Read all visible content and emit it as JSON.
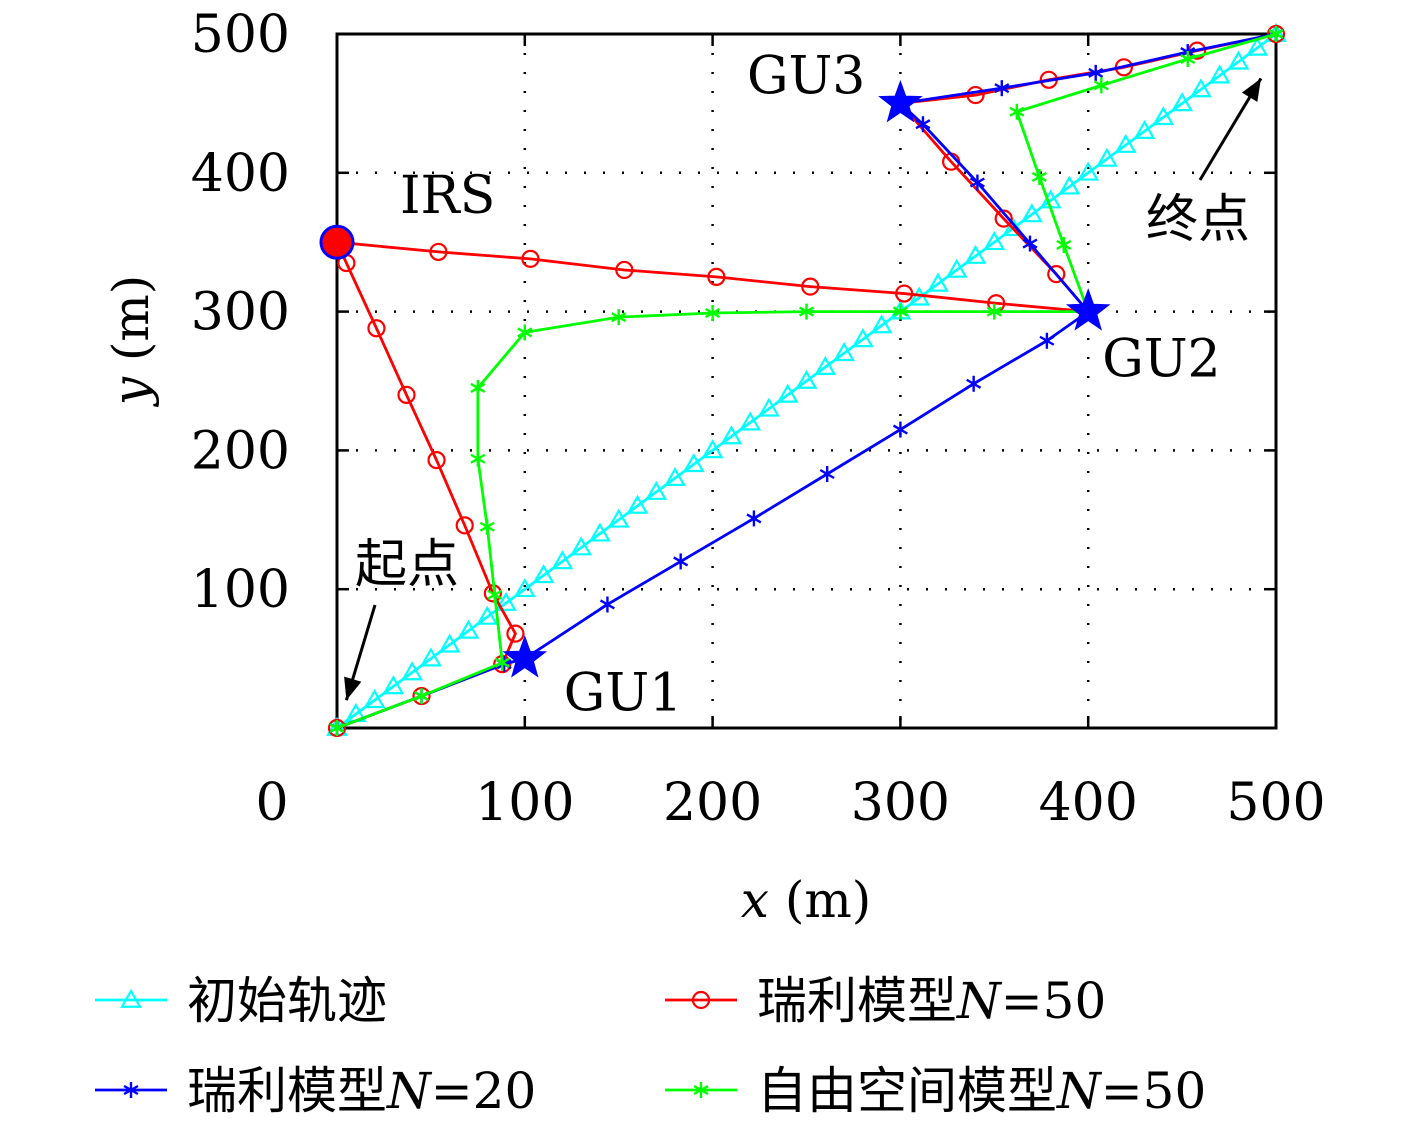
{
  "chart_data": {
    "type": "line",
    "title": "",
    "xlabel_var": "x",
    "xlabel_unit": " (m)",
    "ylabel_var": "y",
    "ylabel_unit": " (m)",
    "xlim": [
      0,
      500
    ],
    "ylim": [
      0,
      500
    ],
    "xticks": [
      0,
      100,
      200,
      300,
      400,
      500
    ],
    "yticks": [
      100,
      200,
      300,
      400,
      500
    ],
    "xtick_labels": [
      "0",
      "100",
      "200",
      "300",
      "400",
      "500"
    ],
    "ytick_labels": [
      "100",
      "200",
      "300",
      "400",
      "500"
    ],
    "grid": true,
    "legend_position": "bottom",
    "series": [
      {
        "name": "初始轨迹",
        "name_plain": "初始轨迹",
        "color": "#00ffff",
        "marker": "triangle",
        "line": [
          [
            0,
            0
          ],
          [
            500,
            500
          ]
        ],
        "marker_count": 50
      },
      {
        "name": "瑞利模型N=50",
        "name_plain": "瑞利模型",
        "name_var": "N",
        "name_value": "=50",
        "color": "#ff0000",
        "marker": "circle",
        "points": [
          [
            0,
            0
          ],
          [
            45,
            23
          ],
          [
            88,
            46
          ],
          [
            95,
            68
          ],
          [
            83,
            97
          ],
          [
            68,
            146
          ],
          [
            53,
            193
          ],
          [
            37,
            240
          ],
          [
            21,
            288
          ],
          [
            5,
            335
          ],
          [
            0,
            350
          ],
          [
            54,
            343
          ],
          [
            103,
            338
          ],
          [
            153,
            330
          ],
          [
            202,
            325
          ],
          [
            252,
            318
          ],
          [
            302,
            313
          ],
          [
            351,
            306
          ],
          [
            400,
            300
          ],
          [
            383,
            327
          ],
          [
            355,
            367
          ],
          [
            327,
            408
          ],
          [
            300,
            450
          ],
          [
            340,
            456
          ],
          [
            379,
            467
          ],
          [
            419,
            476
          ],
          [
            458,
            488
          ],
          [
            500,
            500
          ]
        ]
      },
      {
        "name": "瑞利模型N=20",
        "name_plain": "瑞利模型",
        "name_var": "N",
        "name_value": "=20",
        "color": "#0000ff",
        "marker": "asterisk",
        "points": [
          [
            0,
            0
          ],
          [
            45,
            23
          ],
          [
            89,
            46
          ],
          [
            100,
            50
          ],
          [
            144,
            89
          ],
          [
            183,
            120
          ],
          [
            222,
            151
          ],
          [
            261,
            183
          ],
          [
            300,
            215
          ],
          [
            339,
            248
          ],
          [
            378,
            279
          ],
          [
            400,
            300
          ],
          [
            369,
            349
          ],
          [
            341,
            393
          ],
          [
            312,
            435
          ],
          [
            300,
            450
          ],
          [
            354,
            461
          ],
          [
            404,
            472
          ],
          [
            453,
            487
          ],
          [
            500,
            500
          ]
        ]
      },
      {
        "name": "自由空间模型N=50",
        "name_plain": "自由空间模型",
        "name_var": "N",
        "name_value": "=50",
        "color": "#00ff00",
        "marker": "asterisk",
        "points": [
          [
            0,
            0
          ],
          [
            45,
            23
          ],
          [
            88,
            47
          ],
          [
            84,
            96
          ],
          [
            80,
            145
          ],
          [
            75,
            194
          ],
          [
            75,
            245
          ],
          [
            100,
            285
          ],
          [
            150,
            296
          ],
          [
            200,
            299
          ],
          [
            250,
            300
          ],
          [
            300,
            300
          ],
          [
            350,
            300
          ],
          [
            400,
            300
          ],
          [
            387,
            348
          ],
          [
            374,
            397
          ],
          [
            362,
            444
          ],
          [
            407,
            463
          ],
          [
            453,
            482
          ],
          [
            500,
            500
          ]
        ]
      }
    ],
    "special_points": [
      {
        "label": "IRS",
        "x": 0,
        "y": 350,
        "style": "irs"
      },
      {
        "label": "GU1",
        "x": 100,
        "y": 50,
        "style": "star"
      },
      {
        "label": "GU2",
        "x": 400,
        "y": 300,
        "style": "star"
      },
      {
        "label": "GU3",
        "x": 300,
        "y": 450,
        "style": "star"
      }
    ],
    "annotations": [
      {
        "text": "起点",
        "tip": [
          5,
          20
        ]
      },
      {
        "text": "终点",
        "tip": [
          492,
          468
        ]
      }
    ]
  }
}
